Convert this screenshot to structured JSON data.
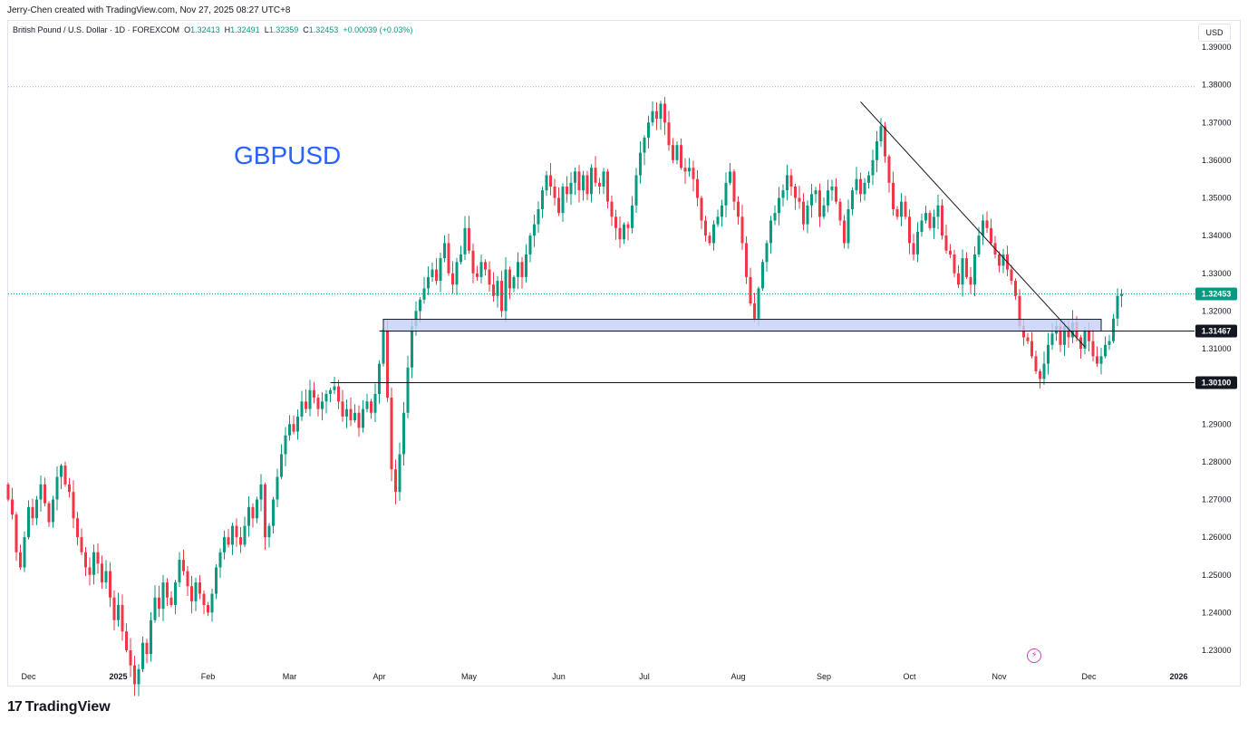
{
  "header": {
    "attribution": "Jerry-Chen created with TradingView.com, Nov 27, 2025 08:27 UTC+8"
  },
  "symbol": {
    "name": "British Pound / U.S. Dollar · 1D · FOREXCOM",
    "o_label": "O",
    "o_value": "1.32413",
    "h_label": "H",
    "h_value": "1.32491",
    "l_label": "L",
    "l_value": "1.32359",
    "c_label": "C",
    "c_value": "1.32453",
    "change": "+0.00039 (+0.03%)"
  },
  "currency_button": "USD",
  "footer": {
    "brand": "TradingView",
    "logo_mark": "17"
  },
  "colors": {
    "up": "#089981",
    "down": "#f23645",
    "zone_fill": "#c5d0fa",
    "title": "#2962ff",
    "grid_dotted": "#9aa0a6"
  },
  "chart_data": {
    "type": "candlestick",
    "title": "GBPUSD",
    "ylim": [
      1.2235,
      1.3985
    ],
    "y_ticks": [
      "1.23000",
      "1.24000",
      "1.25000",
      "1.26000",
      "1.27000",
      "1.28000",
      "1.29000",
      "1.30000",
      "1.31000",
      "1.32000",
      "1.33000",
      "1.34000",
      "1.35000",
      "1.36000",
      "1.37000",
      "1.38000",
      "1.39000"
    ],
    "x_ticks": [
      "Dec",
      "2025",
      "Feb",
      "Mar",
      "Apr",
      "May",
      "Jun",
      "Jul",
      "Aug",
      "Sep",
      "Oct",
      "Nov",
      "Dec",
      "2026"
    ],
    "x_tick_index": [
      5,
      27,
      49,
      69,
      91,
      113,
      135,
      156,
      179,
      200,
      221,
      243,
      265,
      287
    ],
    "n_slots": 300,
    "last_price": 1.32453,
    "last_price_label": "1.32453",
    "high_line": 1.3795,
    "horizontal_levels": [
      {
        "value": 1.31467,
        "label": "1.31467",
        "start": 91
      },
      {
        "value": 1.301,
        "label": "1.30100",
        "start": 79
      }
    ],
    "zone": {
      "low": 1.31467,
      "high": 1.3178,
      "start": 92,
      "end": 268
    },
    "trendline": {
      "from": [
        209,
        1.3755
      ],
      "to": [
        264,
        1.3105
      ]
    },
    "closes": [
      1.27,
      1.266,
      1.256,
      1.252,
      1.26,
      1.268,
      1.265,
      1.27,
      1.274,
      1.269,
      1.264,
      1.27,
      1.276,
      1.279,
      1.274,
      1.272,
      1.265,
      1.26,
      1.256,
      1.252,
      1.25,
      1.256,
      1.253,
      1.248,
      1.251,
      1.244,
      1.238,
      1.242,
      1.235,
      1.23,
      1.226,
      1.221,
      1.225,
      1.232,
      1.229,
      1.238,
      1.244,
      1.241,
      1.248,
      1.244,
      1.242,
      1.248,
      1.254,
      1.251,
      1.247,
      1.243,
      1.248,
      1.245,
      1.242,
      1.24,
      1.245,
      1.252,
      1.256,
      1.26,
      1.258,
      1.263,
      1.26,
      1.258,
      1.263,
      1.268,
      1.265,
      1.27,
      1.274,
      1.26,
      1.263,
      1.27,
      1.276,
      1.282,
      1.287,
      1.29,
      1.288,
      1.292,
      1.296,
      1.294,
      1.299,
      1.297,
      1.294,
      1.296,
      1.298,
      1.299,
      1.3,
      1.296,
      1.292,
      1.294,
      1.291,
      1.293,
      1.289,
      1.294,
      1.296,
      1.293,
      1.298,
      1.306,
      1.315,
      1.297,
      1.278,
      1.272,
      1.282,
      1.293,
      1.305,
      1.316,
      1.32,
      1.323,
      1.326,
      1.329,
      1.331,
      1.328,
      1.334,
      1.338,
      1.33,
      1.327,
      1.333,
      1.335,
      1.342,
      1.336,
      1.33,
      1.329,
      1.333,
      1.331,
      1.327,
      1.324,
      1.328,
      1.32,
      1.331,
      1.326,
      1.329,
      1.333,
      1.329,
      1.335,
      1.34,
      1.343,
      1.347,
      1.352,
      1.356,
      1.353,
      1.35,
      1.346,
      1.353,
      1.351,
      1.354,
      1.357,
      1.352,
      1.356,
      1.351,
      1.358,
      1.354,
      1.353,
      1.357,
      1.349,
      1.345,
      1.342,
      1.339,
      1.343,
      1.342,
      1.348,
      1.356,
      1.362,
      1.366,
      1.37,
      1.373,
      1.371,
      1.375,
      1.37,
      1.364,
      1.36,
      1.364,
      1.358,
      1.357,
      1.358,
      1.355,
      1.35,
      1.344,
      1.34,
      1.338,
      1.343,
      1.345,
      1.348,
      1.354,
      1.357,
      1.349,
      1.345,
      1.338,
      1.329,
      1.322,
      1.318,
      1.326,
      1.333,
      1.338,
      1.344,
      1.346,
      1.35,
      1.352,
      1.356,
      1.353,
      1.35,
      1.349,
      1.343,
      1.348,
      1.351,
      1.352,
      1.345,
      1.348,
      1.352,
      1.353,
      1.349,
      1.344,
      1.338,
      1.347,
      1.352,
      1.355,
      1.351,
      1.354,
      1.356,
      1.36,
      1.365,
      1.369,
      1.361,
      1.354,
      1.347,
      1.345,
      1.349,
      1.345,
      1.338,
      1.335,
      1.341,
      1.344,
      1.346,
      1.342,
      1.345,
      1.348,
      1.34,
      1.336,
      1.335,
      1.33,
      1.327,
      1.334,
      1.329,
      1.327,
      1.335,
      1.34,
      1.344,
      1.342,
      1.338,
      1.335,
      1.332,
      1.335,
      1.331,
      1.328,
      1.324,
      1.316,
      1.313,
      1.312,
      1.308,
      1.304,
      1.302,
      1.306,
      1.311,
      1.314,
      1.316,
      1.311,
      1.316,
      1.313,
      1.317,
      1.313,
      1.31,
      1.315,
      1.312,
      1.308,
      1.306,
      1.308,
      1.311,
      1.312,
      1.318,
      1.324,
      1.3245
    ],
    "first_open": 1.274
  }
}
